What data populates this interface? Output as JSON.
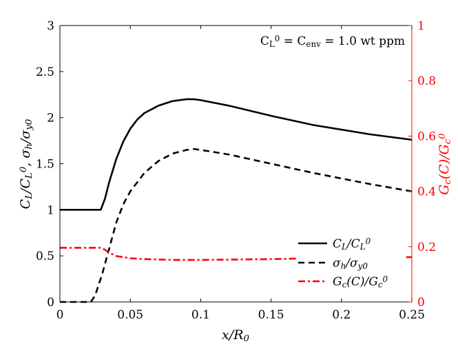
{
  "chart_data": {
    "type": "line",
    "annotation": "C_L^0 = C_env = 1.0 wt ppm",
    "xlabel": "x/R_0",
    "ylabel_left": "C_L/C_L^0, σ_h/σ_y0",
    "ylabel_right": "G_c(C)/G_c^0",
    "xlim": [
      0,
      0.25
    ],
    "ylim_left": [
      0,
      3
    ],
    "ylim_right": [
      0,
      1
    ],
    "x_ticks": [
      "0",
      "0.05",
      "0.1",
      "0.15",
      "0.2",
      "0.25"
    ],
    "y_left_ticks": [
      "0",
      "0.5",
      "1",
      "1.5",
      "2",
      "2.5",
      "3"
    ],
    "y_right_ticks": [
      "0",
      "0.2",
      "0.4",
      "0.6",
      "0.8",
      "1"
    ],
    "legend_position": "bottom-right",
    "colors": {
      "left_axis": "#000000",
      "right_axis": "#ff0000"
    },
    "series": [
      {
        "name": "C_L/C_L^0",
        "axis": "left",
        "style": "solid",
        "color": "#000000",
        "x": [
          0,
          0.029,
          0.032,
          0.035,
          0.04,
          0.045,
          0.05,
          0.055,
          0.06,
          0.07,
          0.08,
          0.09,
          0.095,
          0.1,
          0.12,
          0.15,
          0.18,
          0.2,
          0.22,
          0.25
        ],
        "y": [
          1.0,
          1.0,
          1.12,
          1.3,
          1.55,
          1.74,
          1.88,
          1.98,
          2.05,
          2.13,
          2.18,
          2.2,
          2.2,
          2.19,
          2.13,
          2.02,
          1.92,
          1.87,
          1.82,
          1.76
        ]
      },
      {
        "name": "σ_h/σ_y0",
        "axis": "left",
        "style": "dashed",
        "color": "#000000",
        "x": [
          0,
          0.022,
          0.025,
          0.03,
          0.035,
          0.04,
          0.045,
          0.05,
          0.06,
          0.07,
          0.08,
          0.09,
          0.095,
          0.1,
          0.12,
          0.15,
          0.18,
          0.2,
          0.22,
          0.25
        ],
        "y": [
          0.0,
          0.0,
          0.07,
          0.3,
          0.58,
          0.86,
          1.06,
          1.2,
          1.4,
          1.53,
          1.61,
          1.65,
          1.66,
          1.65,
          1.6,
          1.5,
          1.4,
          1.34,
          1.28,
          1.2
        ]
      },
      {
        "name": "G_c(C)/G_c^0",
        "axis": "right",
        "style": "dashdot",
        "color": "#ff0000",
        "x": [
          0,
          0.029,
          0.032,
          0.035,
          0.04,
          0.05,
          0.06,
          0.08,
          0.1,
          0.12,
          0.15,
          0.168
        ],
        "y": [
          0.196,
          0.196,
          0.189,
          0.178,
          0.166,
          0.158,
          0.155,
          0.152,
          0.152,
          0.153,
          0.155,
          0.157
        ],
        "x_tail": [
          0.246,
          0.25
        ],
        "y_tail": [
          0.162,
          0.162
        ]
      }
    ]
  }
}
